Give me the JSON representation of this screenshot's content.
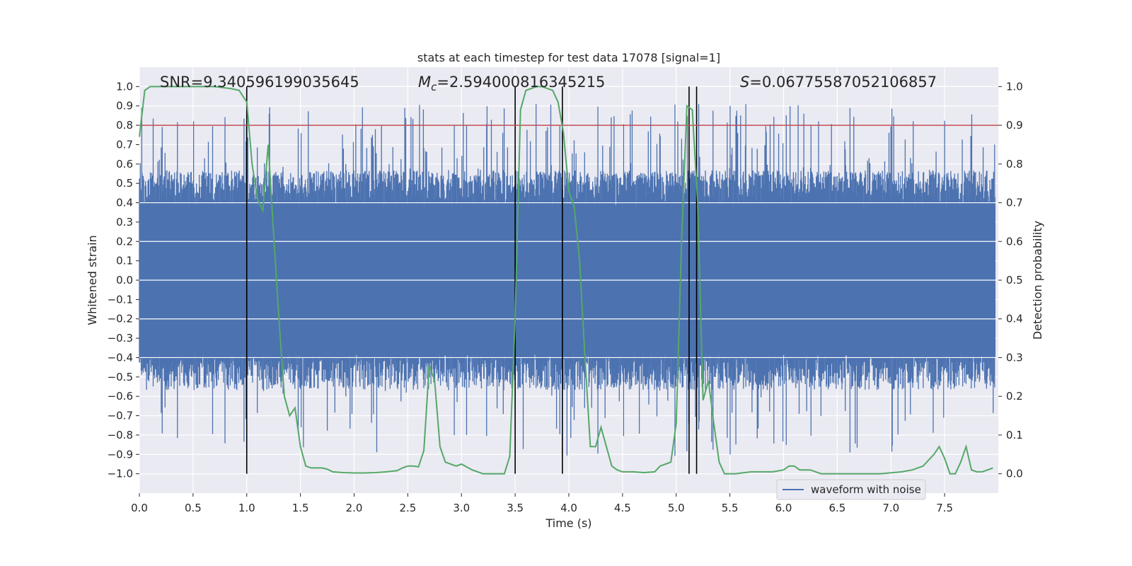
{
  "chart_data": {
    "type": "line",
    "title": "stats at each timestep for test data 17078 [signal=1]",
    "xlabel": "Time (s)",
    "ylabel": "Whitened strain",
    "y2label": "Detection probability",
    "xlim": [
      0.0,
      8.0
    ],
    "ylim": [
      -1.1,
      1.1
    ],
    "y2lim": [
      -0.05,
      1.05
    ],
    "xticks": [
      0.0,
      0.5,
      1.0,
      1.5,
      2.0,
      2.5,
      3.0,
      3.5,
      4.0,
      4.5,
      5.0,
      5.5,
      6.0,
      6.5,
      7.0,
      7.5
    ],
    "xtick_labels": [
      "0.0",
      "0.5",
      "1.0",
      "1.5",
      "2.0",
      "2.5",
      "3.0",
      "3.5",
      "4.0",
      "4.5",
      "5.0",
      "5.5",
      "6.0",
      "6.5",
      "7.0",
      "7.5"
    ],
    "yticks": [
      -1.0,
      -0.9,
      -0.8,
      -0.7,
      -0.6,
      -0.5,
      -0.4,
      -0.3,
      -0.2,
      -0.1,
      0.0,
      0.1,
      0.2,
      0.3,
      0.4,
      0.5,
      0.6,
      0.7,
      0.8,
      0.9,
      1.0
    ],
    "ytick_labels": [
      "−1.0",
      "−0.9",
      "−0.8",
      "−0.7",
      "−0.6",
      "−0.5",
      "−0.4",
      "−0.3",
      "−0.2",
      "−0.1",
      "0.0",
      "0.1",
      "0.2",
      "0.3",
      "0.4",
      "0.5",
      "0.6",
      "0.7",
      "0.8",
      "0.9",
      "1.0"
    ],
    "y2ticks": [
      0.0,
      0.1,
      0.2,
      0.3,
      0.4,
      0.5,
      0.6,
      0.7,
      0.8,
      0.9,
      1.0
    ],
    "y2tick_labels": [
      "0.0",
      "0.1",
      "0.2",
      "0.3",
      "0.4",
      "0.5",
      "0.6",
      "0.7",
      "0.8",
      "0.9",
      "1.0"
    ],
    "grid": true,
    "legend": {
      "entries": [
        "waveform with noise"
      ],
      "placement": "lower-right"
    },
    "annotations": {
      "snr": "SNR=9.340596199035645",
      "mc_prefix": "M",
      "mc_sub": "c",
      "mc_value": "=2.594000816345215",
      "s_prefix": "S",
      "s_value": "=0.06775587052106857"
    },
    "threshold": {
      "y2": 0.9,
      "color": "#c44e52"
    },
    "event_lines_x": [
      1.0,
      3.5,
      3.94,
      5.12,
      5.19
    ],
    "waveform": {
      "name": "waveform with noise",
      "color": "#4c72b0",
      "samples": 1800,
      "core_amplitude": 0.38,
      "typical_peak": 0.55,
      "max_peak": 1.0,
      "min_trough": -1.0
    },
    "probability": {
      "color": "#55a868",
      "x": [
        0.0,
        0.05,
        0.1,
        0.2,
        0.3,
        0.5,
        0.7,
        0.85,
        0.93,
        1.0,
        1.05,
        1.1,
        1.15,
        1.2,
        1.25,
        1.3,
        1.35,
        1.4,
        1.45,
        1.5,
        1.55,
        1.6,
        1.65,
        1.7,
        1.75,
        1.8,
        1.9,
        2.0,
        2.1,
        2.2,
        2.3,
        2.4,
        2.45,
        2.5,
        2.55,
        2.6,
        2.65,
        2.7,
        2.75,
        2.8,
        2.85,
        2.9,
        2.95,
        3.0,
        3.1,
        3.2,
        3.25,
        3.3,
        3.35,
        3.4,
        3.45,
        3.5,
        3.55,
        3.6,
        3.7,
        3.75,
        3.8,
        3.85,
        3.9,
        3.95,
        4.0,
        4.05,
        4.1,
        4.15,
        4.2,
        4.25,
        4.3,
        4.35,
        4.4,
        4.45,
        4.5,
        4.6,
        4.7,
        4.8,
        4.85,
        4.9,
        4.95,
        5.0,
        5.05,
        5.1,
        5.15,
        5.2,
        5.25,
        5.3,
        5.35,
        5.4,
        5.45,
        5.5,
        5.55,
        5.7,
        5.9,
        6.0,
        6.05,
        6.1,
        6.15,
        6.2,
        6.25,
        6.3,
        6.35,
        6.4,
        6.5,
        6.7,
        6.9,
        7.1,
        7.2,
        7.3,
        7.4,
        7.45,
        7.5,
        7.55,
        7.6,
        7.65,
        7.7,
        7.75,
        7.8,
        7.85,
        7.9,
        7.95
      ],
      "y": [
        0.87,
        0.99,
        1.0,
        1.0,
        1.0,
        1.0,
        1.0,
        0.995,
        0.99,
        0.96,
        0.8,
        0.71,
        0.68,
        0.85,
        0.62,
        0.4,
        0.2,
        0.15,
        0.17,
        0.07,
        0.02,
        0.015,
        0.015,
        0.015,
        0.012,
        0.005,
        0.003,
        0.002,
        0.002,
        0.003,
        0.005,
        0.008,
        0.015,
        0.02,
        0.02,
        0.018,
        0.06,
        0.28,
        0.24,
        0.07,
        0.03,
        0.025,
        0.02,
        0.025,
        0.01,
        0.0,
        0.0,
        0.0,
        0.0,
        0.0,
        0.045,
        0.4,
        0.94,
        0.99,
        1.0,
        1.0,
        0.995,
        0.99,
        0.96,
        0.88,
        0.73,
        0.69,
        0.55,
        0.3,
        0.07,
        0.07,
        0.12,
        0.07,
        0.02,
        0.01,
        0.005,
        0.005,
        0.003,
        0.005,
        0.02,
        0.025,
        0.03,
        0.13,
        0.6,
        0.95,
        0.94,
        0.7,
        0.19,
        0.24,
        0.13,
        0.03,
        0.0,
        0.0,
        0.0,
        0.005,
        0.005,
        0.01,
        0.02,
        0.02,
        0.01,
        0.01,
        0.01,
        0.005,
        0.0,
        0.0,
        0.0,
        0.0,
        0.0,
        0.005,
        0.01,
        0.02,
        0.05,
        0.07,
        0.04,
        0.0,
        0.0,
        0.03,
        0.07,
        0.01,
        0.005,
        0.005,
        0.01,
        0.015
      ]
    }
  }
}
